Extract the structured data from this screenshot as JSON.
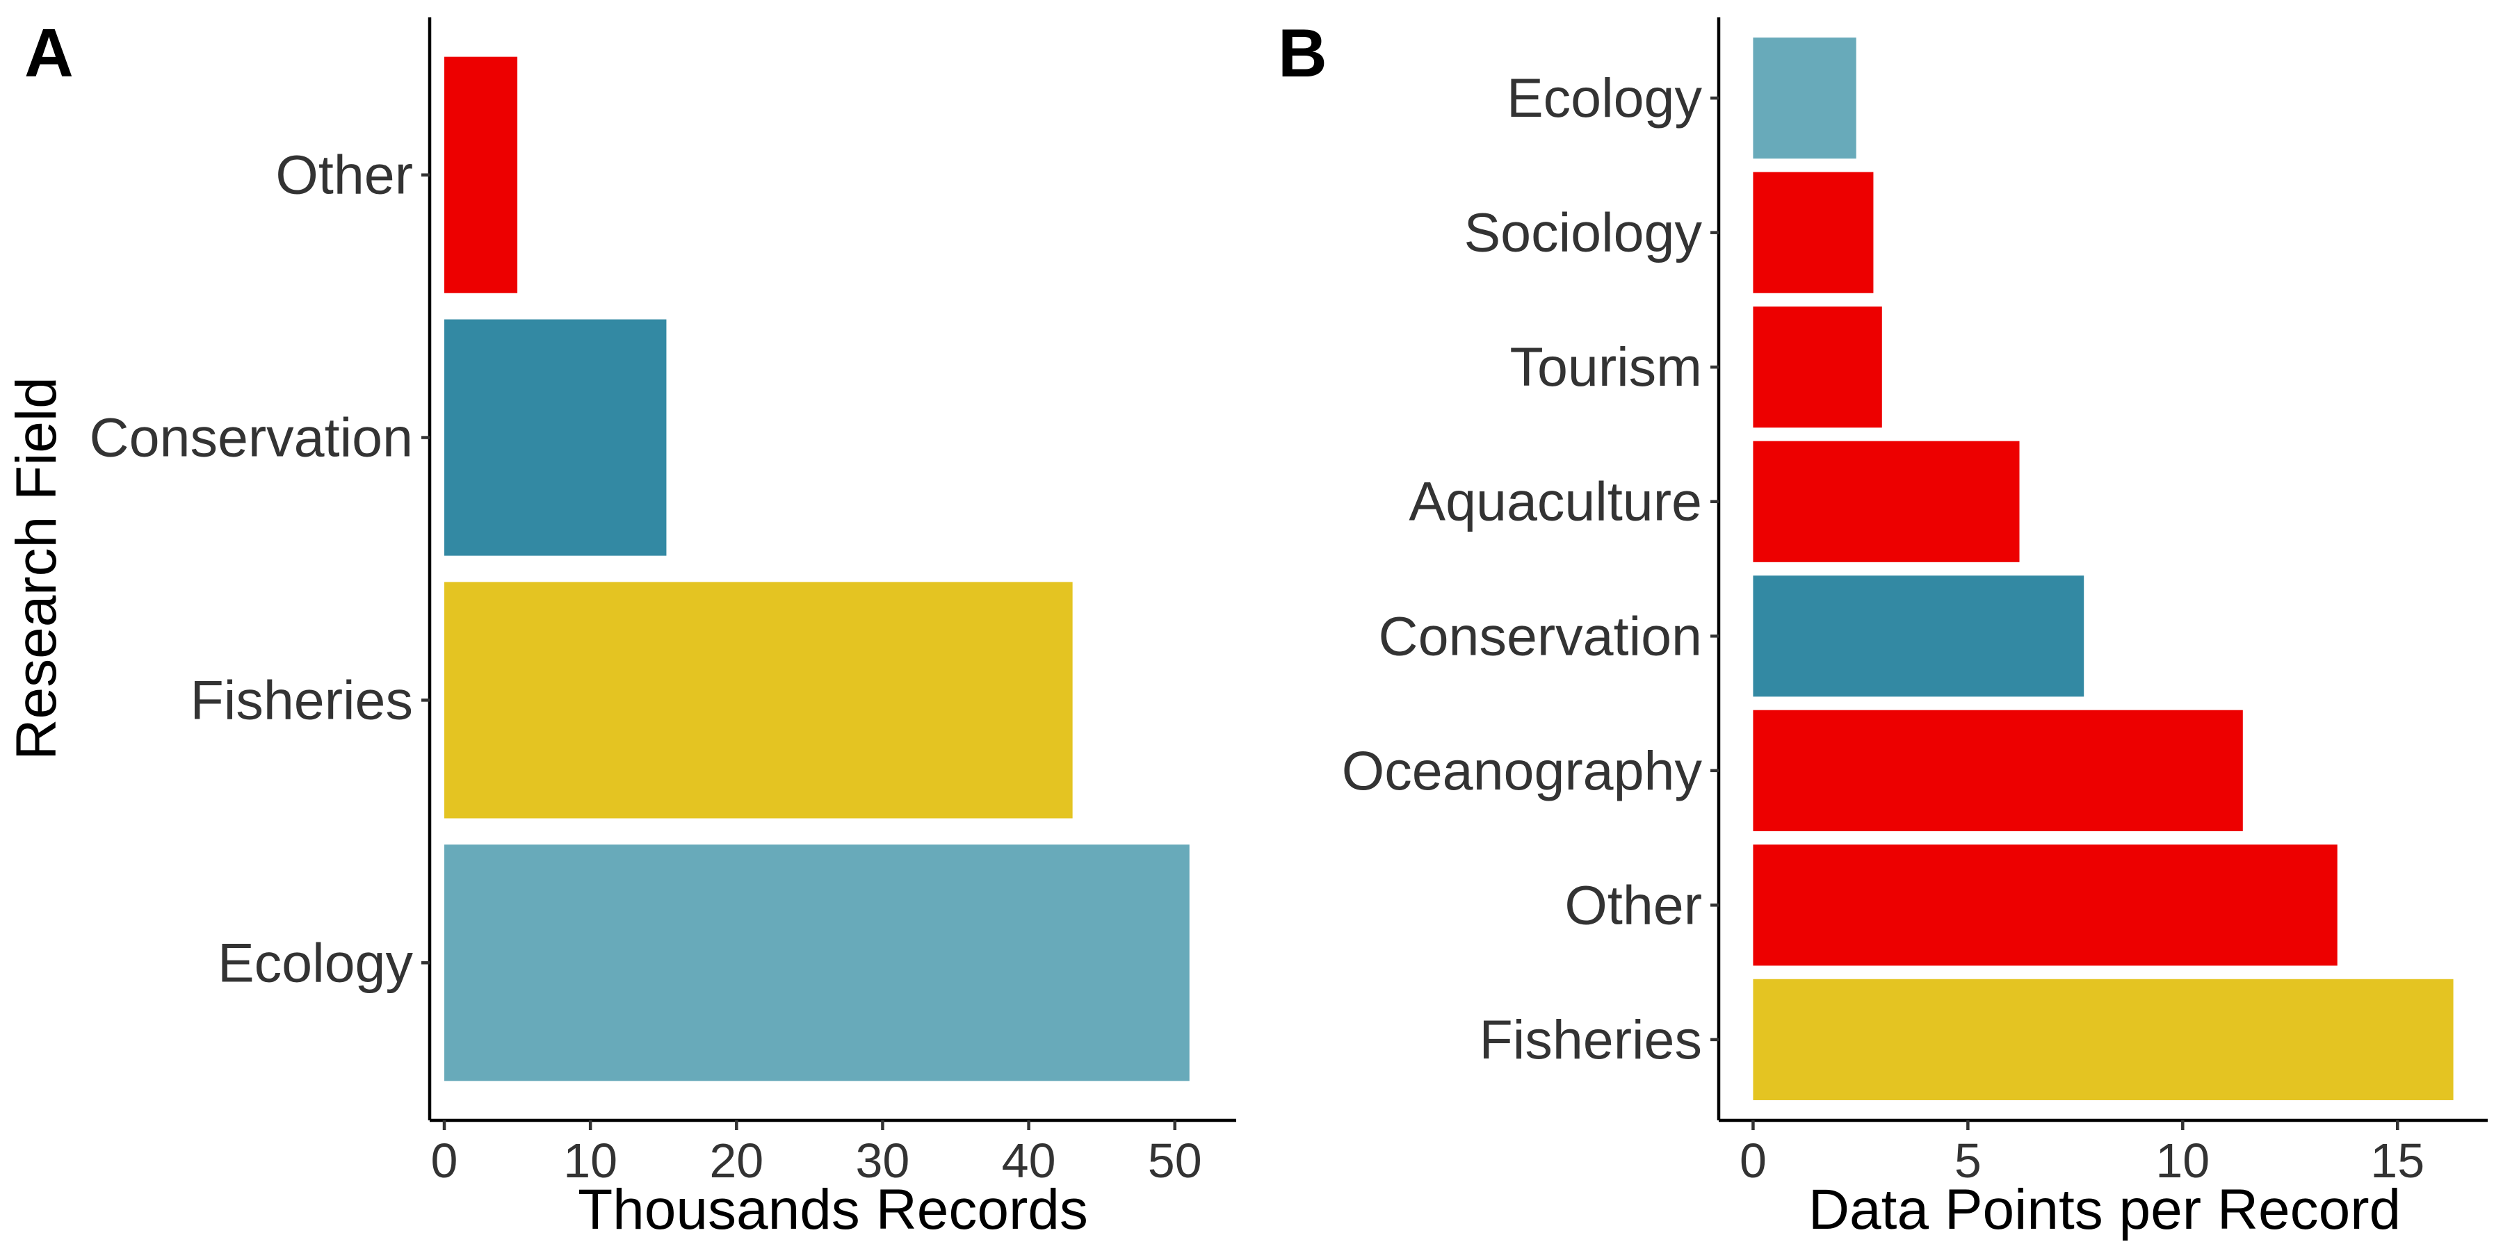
{
  "chart_data": [
    {
      "panel_label": "A",
      "type": "bar",
      "orientation": "horizontal",
      "categories": [
        "Ecology",
        "Fisheries",
        "Conservation",
        "Other"
      ],
      "values": [
        51,
        43,
        15.2,
        5
      ],
      "colors": [
        "#68aaba",
        "#e4c422",
        "#3389a3",
        "#ed0000"
      ],
      "xlabel": "Thousands Records",
      "ylabel": "Research Field",
      "xlim": [
        -1,
        54.2
      ],
      "xticks": [
        0,
        10,
        20,
        30,
        40,
        50
      ],
      "xtick_labels": [
        "0",
        "10",
        "20",
        "30",
        "40",
        "50"
      ],
      "grid": false
    },
    {
      "panel_label": "B",
      "type": "bar",
      "orientation": "horizontal",
      "categories": [
        "Fisheries",
        "Other",
        "Oceanography",
        "Conservation",
        "Aquaculture",
        "Tourism",
        "Sociology",
        "Ecology"
      ],
      "values": [
        16.3,
        13.6,
        11.4,
        7.7,
        6.2,
        3,
        2.8,
        2.4
      ],
      "colors": [
        "#e4c422",
        "#ed0000",
        "#ed0000",
        "#3389a3",
        "#ed0000",
        "#ed0000",
        "#ed0000",
        "#68aaba"
      ],
      "xlabel": "Data Points per Record",
      "ylabel": "",
      "xlim": [
        -0.8,
        17.1
      ],
      "xticks": [
        0,
        5,
        10,
        15
      ],
      "xtick_labels": [
        "0",
        "5",
        "10",
        "15"
      ],
      "grid": false
    }
  ]
}
